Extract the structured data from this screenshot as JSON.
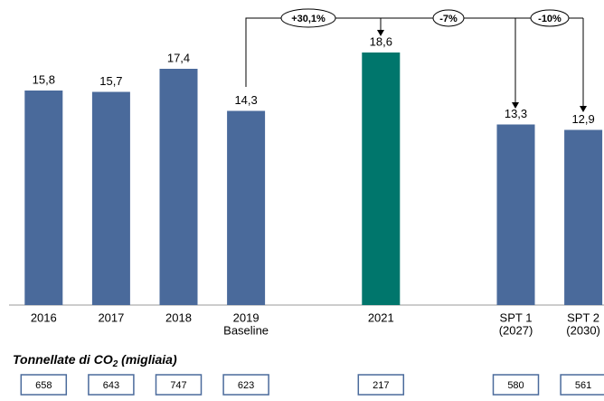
{
  "chart_data": {
    "type": "bar",
    "categories": [
      "2016",
      "2017",
      "2018",
      "2019",
      null,
      "2021",
      null,
      "SPT 1",
      "SPT 2"
    ],
    "category_sublabels": [
      null,
      null,
      null,
      "Baseline",
      null,
      null,
      null,
      "(2027)",
      "(2030)"
    ],
    "values": [
      15.8,
      15.7,
      17.4,
      14.3,
      null,
      18.6,
      null,
      13.3,
      12.9
    ],
    "value_labels": [
      "15,8",
      "15,7",
      "17,4",
      "14,3",
      null,
      "18,6",
      null,
      "13,3",
      "12,9"
    ],
    "colors": [
      "#4a6a9b",
      "#4a6a9b",
      "#4a6a9b",
      "#4a6a9b",
      null,
      "#00766c",
      null,
      "#4a6a9b",
      "#4a6a9b"
    ],
    "annotations": [
      "+30,1%",
      "-7%",
      "-10%"
    ],
    "emissions_label": {
      "text": "Tonnellate di CO",
      "sub": "2",
      "suffix": " (migliaia)"
    },
    "emissions_values": [
      658,
      643,
      747,
      623,
      null,
      217,
      null,
      580,
      561
    ]
  }
}
